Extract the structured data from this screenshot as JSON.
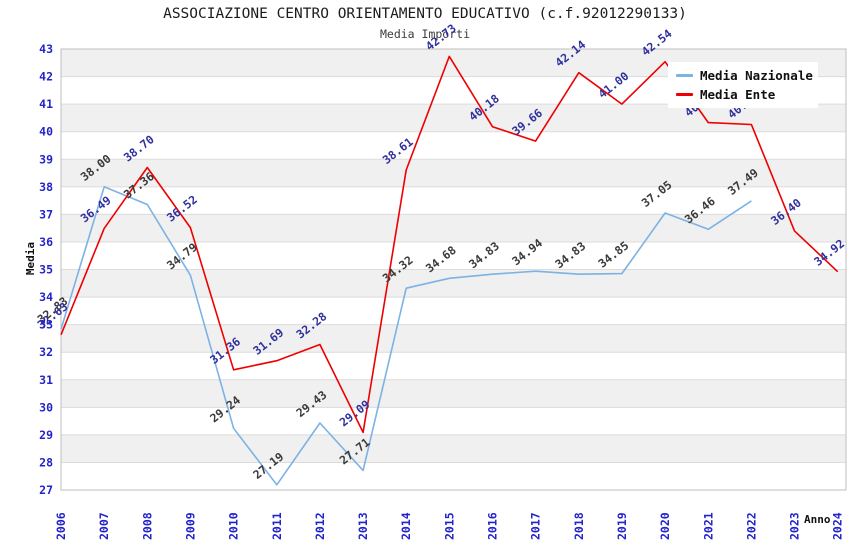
{
  "window": {
    "title": "ASSOCIAZIONE CENTRO ORIENTAMENTO EDUCATIVO (c.f.92012290133)",
    "subtitle": "Media Importi"
  },
  "axes": {
    "y_title": "Media",
    "x_title": "Anno"
  },
  "legend": {
    "items": [
      {
        "label": "Media Nazionale",
        "color": "#7CB2E4"
      },
      {
        "label": "Media Ente",
        "color": "#EE0000"
      }
    ]
  },
  "colors": {
    "axis_text": "#2323CB",
    "band": "#F0F0F0",
    "grid": "#DCDCDC",
    "border": "#BFBFBF",
    "background": "#FFFFFF",
    "label_nazionale": "#3A3A3A",
    "label_ente": "#31319E"
  },
  "chart_data": {
    "type": "line",
    "title": "ASSOCIAZIONE CENTRO ORIENTAMENTO EDUCATIVO (c.f.92012290133)",
    "subtitle": "Media Importi",
    "xlabel": "Anno",
    "ylabel": "Media",
    "x": [
      2006,
      2007,
      2008,
      2009,
      2010,
      2011,
      2012,
      2013,
      2014,
      2015,
      2016,
      2017,
      2018,
      2019,
      2020,
      2021,
      2022,
      2023,
      2024
    ],
    "ylim": [
      27,
      43
    ],
    "y_tick_step": 1,
    "grid": true,
    "legend_position": "top-right",
    "point_labels": true,
    "series": [
      {
        "name": "Media Nazionale",
        "color": "#7CB2E4",
        "label_color": "#3A3A3A",
        "values": [
          32.83,
          38.0,
          37.36,
          34.79,
          29.24,
          27.19,
          29.43,
          27.71,
          34.32,
          34.68,
          34.83,
          34.94,
          34.83,
          34.85,
          37.05,
          36.46,
          37.49,
          null,
          null
        ]
      },
      {
        "name": "Media Ente",
        "color": "#EE0000",
        "label_color": "#31319E",
        "values": [
          32.63,
          36.49,
          38.7,
          36.52,
          31.36,
          31.69,
          32.28,
          29.09,
          38.61,
          42.73,
          40.18,
          39.66,
          42.14,
          41.0,
          42.54,
          40.33,
          40.26,
          36.4,
          34.92
        ]
      }
    ]
  }
}
